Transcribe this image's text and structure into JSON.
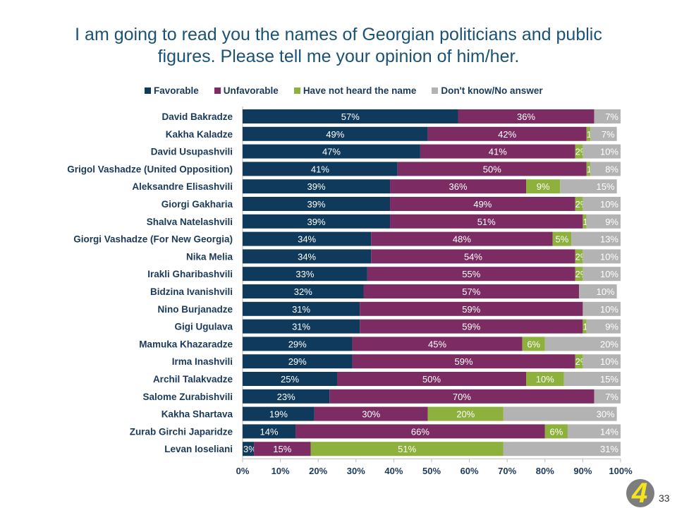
{
  "title_line1": "I am going to read you the names of Georgian politicians and public",
  "title_line2": "figures. Please tell me your opinion of him/her.",
  "page_number": "33",
  "logo_text": "4",
  "colors": {
    "Favorable": "#0f3a5c",
    "Unfavorable": "#7c2c62",
    "Have not heard the name": "#8db13c",
    "Don't know/No answer": "#b3b3b3"
  },
  "chart_data": {
    "type": "bar",
    "orientation": "horizontal-stacked-100",
    "xlim": [
      0,
      100
    ],
    "xticks": [
      "0%",
      "10%",
      "20%",
      "30%",
      "40%",
      "50%",
      "60%",
      "70%",
      "80%",
      "90%",
      "100%"
    ],
    "legend_position": "top",
    "categories": [
      "David Bakradze",
      "Kakha Kaladze",
      "David Usupashvili",
      "Grigol Vashadze (United Opposition)",
      "Aleksandre Elisashvili",
      "Giorgi Gakharia",
      "Shalva Natelashvili",
      "Giorgi Vashadze (For New Georgia)",
      "Nika Melia",
      "Irakli Gharibashvili",
      "Bidzina Ivanishvili",
      "Nino Burjanadze",
      "Gigi Ugulava",
      "Mamuka Khazaradze",
      "Irma Inashvili",
      "Archil Talakvadze",
      "Salome Zurabishvili",
      "Kakha Shartava",
      "Zurab Girchi Japaridze",
      "Levan Ioseliani"
    ],
    "series": [
      {
        "name": "Favorable",
        "values": [
          57,
          49,
          47,
          41,
          39,
          39,
          39,
          34,
          34,
          33,
          32,
          31,
          31,
          29,
          29,
          25,
          23,
          19,
          14,
          3
        ]
      },
      {
        "name": "Unfavorable",
        "values": [
          36,
          42,
          41,
          50,
          36,
          49,
          51,
          48,
          54,
          55,
          57,
          59,
          59,
          45,
          59,
          50,
          70,
          30,
          66,
          15
        ]
      },
      {
        "name": "Have not heard the name",
        "values": [
          0,
          1,
          2,
          1,
          9,
          2,
          1,
          5,
          2,
          2,
          0,
          0,
          1,
          6,
          2,
          10,
          0,
          20,
          6,
          51
        ]
      },
      {
        "name": "Don't know/No answer",
        "values": [
          7,
          7,
          10,
          8,
          15,
          10,
          9,
          13,
          10,
          10,
          10,
          10,
          9,
          20,
          10,
          15,
          7,
          30,
          14,
          31
        ]
      }
    ]
  }
}
